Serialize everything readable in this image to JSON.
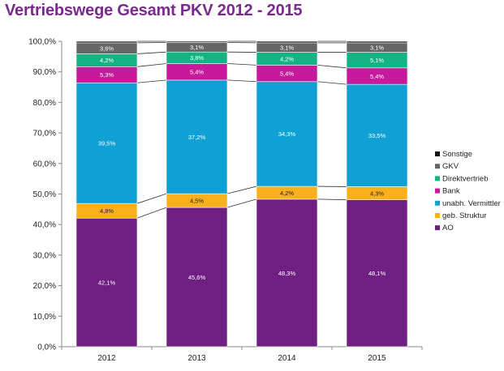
{
  "title": "Vertriebswege Gesamt PKV 2012 - 2015",
  "chart_data": {
    "type": "bar",
    "stacked": true,
    "title": "Vertriebswege Gesamt PKV 2012 - 2015",
    "xlabel": "",
    "ylabel": "",
    "ylim": [
      0,
      100
    ],
    "y_ticks": [
      "0,0%",
      "10,0%",
      "20,0%",
      "30,0%",
      "40,0%",
      "50,0%",
      "60,0%",
      "70,0%",
      "80,0%",
      "90,0%",
      "100,0%"
    ],
    "categories": [
      "2012",
      "2013",
      "2014",
      "2015"
    ],
    "legend_position": "right",
    "series": [
      {
        "name": "AO",
        "color": "#6f1e82",
        "values": [
          42.1,
          45.6,
          48.3,
          48.1
        ],
        "labels": [
          "42,1%",
          "45,6%",
          "48,3%",
          "48,1%"
        ],
        "label_color": "#ffffff"
      },
      {
        "name": "geb. Struktur",
        "color": "#f9b01b",
        "values": [
          4.8,
          4.5,
          4.2,
          4.3
        ],
        "labels": [
          "4,8%",
          "4,5%",
          "4,2%",
          "4,3%"
        ],
        "label_color": "#222222"
      },
      {
        "name": "unabh. Vermittler",
        "color": "#0fa0d4",
        "values": [
          39.5,
          37.2,
          34.3,
          33.5
        ],
        "labels": [
          "39,5%",
          "37,2%",
          "34,3%",
          "33,5%"
        ],
        "label_color": "#ffffff"
      },
      {
        "name": "Bank",
        "color": "#c8189c",
        "values": [
          5.3,
          5.4,
          5.4,
          5.4
        ],
        "labels": [
          "5,3%",
          "5,4%",
          "5,4%",
          "5,4%"
        ],
        "label_color": "#ffffff"
      },
      {
        "name": "Direktvertrieb",
        "color": "#13b483",
        "values": [
          4.2,
          3.8,
          4.2,
          5.1
        ],
        "labels": [
          "4,2%",
          "3,8%",
          "4,2%",
          "5,1%"
        ],
        "label_color": "#ffffff"
      },
      {
        "name": "GKV",
        "color": "#666666",
        "values": [
          3.6,
          3.1,
          3.1,
          3.1
        ],
        "labels": [
          "3,6%",
          "3,1%",
          "3,1%",
          "3,1%"
        ],
        "label_color": "#ffffff"
      },
      {
        "name": "Sonstige",
        "color": "#111111",
        "values": [
          0.5,
          0.4,
          0.5,
          0.5
        ],
        "labels": [
          "",
          "",
          "",
          ""
        ],
        "label_color": "#ffffff"
      }
    ],
    "legend_order": [
      "Sonstige",
      "GKV",
      "Direktvertrieb",
      "Bank",
      "unabh. Vermittler",
      "geb. Struktur",
      "AO"
    ]
  }
}
